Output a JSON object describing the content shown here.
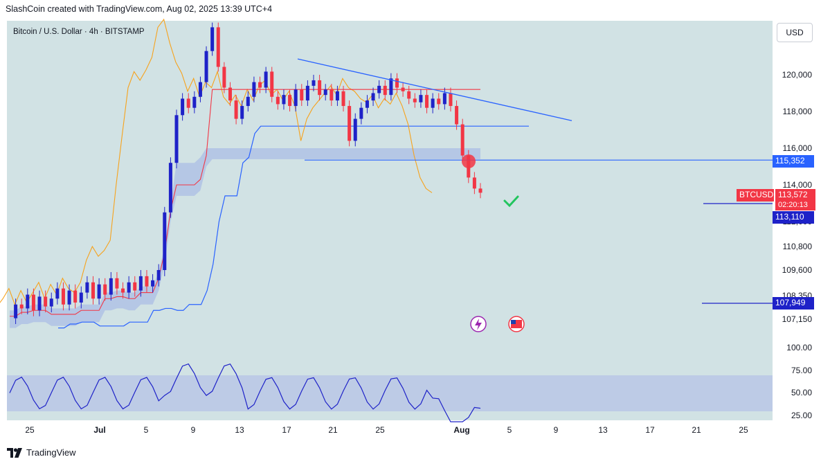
{
  "header": "SlashCoin created with TradingView.com, Aug 02, 2025 13:39 UTC+4",
  "symbol_title": "Bitcoin / U.S. Dollar · 4h · BITSTAMP",
  "currency_button": "USD",
  "footer": "TradingView",
  "price_tags": {
    "resistance": "115,352",
    "symbol": "BTCUSD",
    "last_price": "113,572",
    "countdown": "02:20:13",
    "current_line": "113,110",
    "support": "107,949"
  },
  "colors": {
    "blue": "#2962ff",
    "red": "#f23645",
    "orange": "#f7a21b",
    "rsi_band": "#b8c6e6"
  },
  "chart_data": {
    "type": "line",
    "title": "Bitcoin / U.S. Dollar · 4h · BITSTAMP",
    "y_axis_labels": [
      "120,000",
      "118,000",
      "116,000",
      "114,000",
      "112,000",
      "110,800",
      "109,600",
      "108,350",
      "107,150",
      "100.00",
      "75.00",
      "50.00",
      "25.00"
    ],
    "x_axis_labels": [
      "25",
      "Jul",
      "5",
      "9",
      "13",
      "17",
      "21",
      "25",
      "Aug",
      "5",
      "9",
      "13",
      "17",
      "21",
      "25"
    ],
    "horizontal_levels": [
      115352,
      113110,
      107949
    ],
    "current_price": 113572,
    "series": [
      {
        "values": [
          107200,
          107900,
          107700,
          108400,
          107600,
          108300,
          107800,
          108200,
          108700,
          107900,
          108600,
          108000,
          108500,
          109000,
          108200,
          108900,
          108400,
          109200,
          108700,
          108500,
          109000,
          108600,
          109300,
          108800,
          109100,
          109600,
          112500,
          115200,
          117800,
          118700,
          118200,
          118800,
          119600,
          121500,
          123000,
          120500,
          119300,
          118600,
          117600,
          118300,
          118800,
          119600,
          119300,
          120200,
          118800,
          118400,
          118900,
          118300,
          119200,
          118600,
          119400,
          119700,
          118900,
          119200,
          118600,
          119100,
          118300,
          116400,
          117600,
          118200,
          118600,
          119000,
          119400,
          118900,
          119800,
          119300,
          119100,
          118700,
          118500,
          118900,
          118200,
          118700,
          118400,
          119000,
          118300,
          117300,
          115600,
          114400,
          113800,
          113572
        ]
      },
      {
        "name": "Kumo base",
        "values": [
          107300,
          107300,
          107500,
          107500,
          107600,
          107600,
          107600,
          107400,
          107400,
          107400,
          107400,
          107400,
          107600,
          107600,
          107600,
          107600,
          108200,
          108200,
          108300,
          108300,
          108200,
          108200,
          108500,
          108500,
          108500,
          109200,
          110500,
          112600,
          114000,
          114000,
          114000,
          114000,
          114300,
          115600,
          116000,
          116000,
          116000,
          116000,
          116000,
          116000,
          116000,
          116000,
          116000,
          116000,
          116000,
          116000,
          116000,
          116000,
          116000,
          116000,
          116000,
          116000,
          116000,
          116000,
          116000,
          116000,
          116000,
          116000,
          116000,
          116000,
          116000,
          116000,
          116000,
          116000,
          116000,
          116000,
          116000,
          116000,
          116000,
          116000,
          116000,
          116000,
          116000,
          116000,
          116000,
          116000,
          116000,
          116000,
          116000,
          116000
        ]
      }
    ],
    "rsi": {
      "upper": 70,
      "lower": 30
    }
  }
}
